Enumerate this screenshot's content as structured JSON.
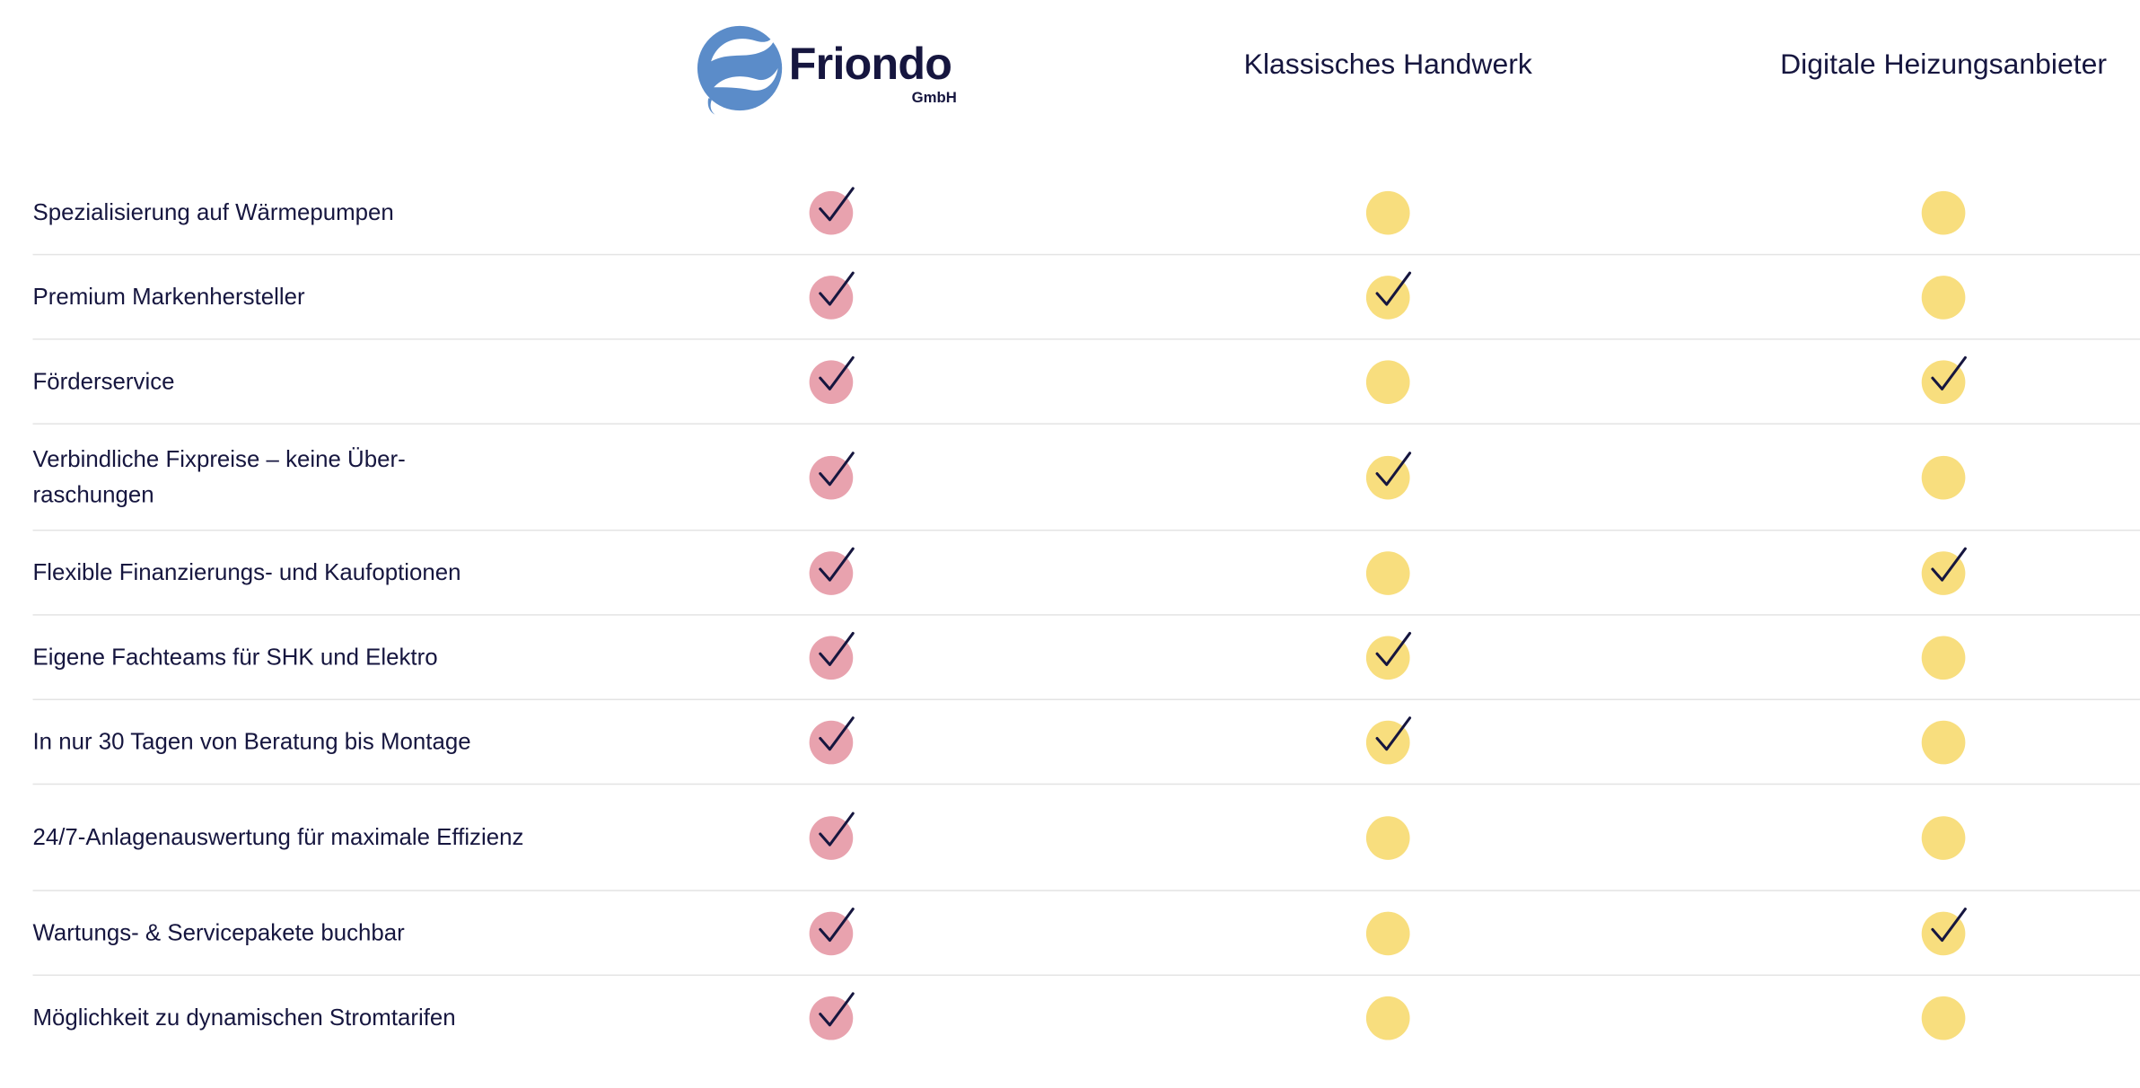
{
  "brand": {
    "name": "Friondo",
    "suffix": "GmbH"
  },
  "columns": [
    {
      "label": ""
    },
    {
      "label": "Klassisches Handwerk"
    },
    {
      "label": "Digitale Heizungsanbieter"
    }
  ],
  "colors": {
    "text": "#16163f",
    "friondo_dot": "#e8a2ae",
    "other_dot": "#f8de7e",
    "logo_blue": "#5b8cc9",
    "divider": "#e4e4e4"
  },
  "icons": {
    "check": "check-icon",
    "empty": "circle-icon"
  },
  "rows": [
    {
      "label": "Spezialisierung auf Wärmepumpen",
      "values": [
        true,
        false,
        false
      ]
    },
    {
      "label": "Premium Markenhersteller",
      "values": [
        true,
        true,
        false
      ]
    },
    {
      "label": "Förderservice",
      "values": [
        true,
        false,
        true
      ]
    },
    {
      "label": "Verbindliche Fixpreise – keine Über-raschungen",
      "values": [
        true,
        true,
        false
      ]
    },
    {
      "label": "Flexible Finanzierungs- und Kaufoptionen",
      "values": [
        true,
        false,
        true
      ]
    },
    {
      "label": "Eigene Fachteams für SHK und Elektro",
      "values": [
        true,
        true,
        false
      ]
    },
    {
      "label": "In nur 30 Tagen von Beratung bis Montage",
      "values": [
        true,
        true,
        false
      ]
    },
    {
      "label": "24/7-Anlagenauswertung für maximale Effizienz",
      "values": [
        true,
        false,
        false
      ]
    },
    {
      "label": "Wartungs- & Servicepakete buchbar",
      "values": [
        true,
        false,
        true
      ]
    },
    {
      "label": "Möglichkeit zu dynamischen Stromtarifen",
      "values": [
        true,
        false,
        false
      ]
    }
  ]
}
